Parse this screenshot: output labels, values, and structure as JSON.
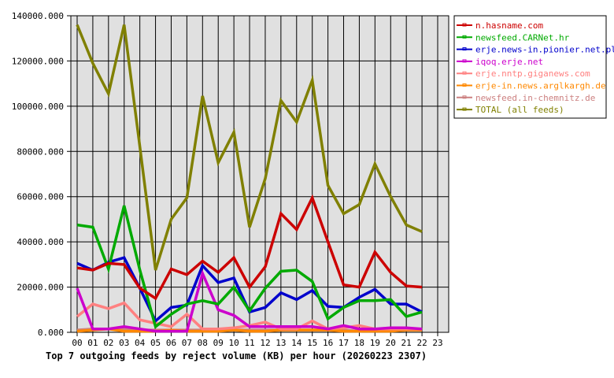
{
  "chart_data": {
    "type": "line",
    "title": "Top 7 outgoing feeds by reject volume (KB) per hour (20260223 2307)",
    "xlabel": "",
    "ylabel": "",
    "x": [
      "00",
      "01",
      "02",
      "03",
      "04",
      "05",
      "06",
      "07",
      "08",
      "09",
      "10",
      "11",
      "12",
      "13",
      "14",
      "15",
      "16",
      "17",
      "18",
      "19",
      "20",
      "21",
      "22",
      "23"
    ],
    "ylim": [
      0,
      140000
    ],
    "yticks": [
      "0.000",
      "20000.000",
      "40000.000",
      "60000.000",
      "80000.000",
      "100000.000",
      "120000.000",
      "140000.000"
    ],
    "ytick_values": [
      0,
      20000,
      40000,
      60000,
      80000,
      100000,
      120000,
      140000
    ],
    "grid": true,
    "legend_position": "right-top",
    "series": [
      {
        "name": "n.hasname.com",
        "color": "#cc0000",
        "values": [
          28500,
          27500,
          30500,
          30000,
          19500,
          15000,
          28000,
          25500,
          31500,
          26500,
          33000,
          20000,
          29000,
          52500,
          45500,
          59500,
          40000,
          21000,
          20000,
          35500,
          26500,
          20500,
          20000
        ]
      },
      {
        "name": "newsfeed.CARNet.hr",
        "color": "#00aa00",
        "values": [
          47500,
          46500,
          28000,
          56000,
          27500,
          2500,
          8000,
          12500,
          14000,
          12500,
          20000,
          9500,
          19500,
          27000,
          27500,
          22500,
          6000,
          11000,
          14000,
          14000,
          14500,
          7000,
          9000
        ]
      },
      {
        "name": "erje.news-in.pionier.net.pl",
        "color": "#0000cc",
        "values": [
          30500,
          27500,
          31000,
          33000,
          19500,
          5000,
          11000,
          12000,
          29500,
          22000,
          24000,
          9000,
          11000,
          17500,
          14500,
          18500,
          11500,
          11000,
          15500,
          19000,
          12500,
          12500,
          9000
        ]
      },
      {
        "name": "iqoq.erje.net",
        "color": "#cc00cc",
        "values": [
          19500,
          1500,
          1500,
          2500,
          1500,
          500,
          500,
          500,
          26000,
          10000,
          7500,
          2500,
          2500,
          2500,
          2500,
          2500,
          1500,
          3000,
          1500,
          1500,
          2000,
          2000,
          1500
        ]
      },
      {
        "name": "erje.nntp.giganews.com",
        "color": "#ff8080",
        "values": [
          7000,
          12500,
          10500,
          13000,
          5500,
          4000,
          2500,
          8000,
          1500,
          1500,
          2000,
          3000,
          4500,
          1500,
          1500,
          5000,
          1500,
          2000,
          3000,
          1500,
          1500,
          1500,
          1500
        ]
      },
      {
        "name": "erje-in.news.arglkargh.de",
        "color": "#ff8800",
        "values": [
          500,
          1000,
          1500,
          500,
          500,
          500,
          1000,
          500,
          500,
          500,
          1000,
          500,
          500,
          1000,
          1000,
          1000,
          1000,
          500,
          500,
          500,
          500,
          1000,
          1000
        ]
      },
      {
        "name": "newsfeed.in-chemnitz.de",
        "color": "#cc8080",
        "values": [
          1000,
          1500,
          1500,
          1500,
          1000,
          1000,
          1000,
          1000,
          1000,
          1000,
          1000,
          1000,
          1000,
          1000,
          1000,
          1000,
          1000,
          1000,
          500,
          1000,
          1000,
          1000,
          1000
        ]
      },
      {
        "name": "TOTAL (all feeds)",
        "color": "#808000",
        "values": [
          136000,
          119000,
          105500,
          136000,
          82000,
          27500,
          50000,
          59500,
          104500,
          75000,
          88500,
          46500,
          68000,
          102500,
          93000,
          111500,
          65000,
          52500,
          56500,
          74500,
          60000,
          47500,
          44500
        ]
      }
    ]
  },
  "colors": {
    "background": "#ffffff",
    "plot_background": "#e0e0e0",
    "grid": "#000000",
    "axis": "#000000"
  }
}
